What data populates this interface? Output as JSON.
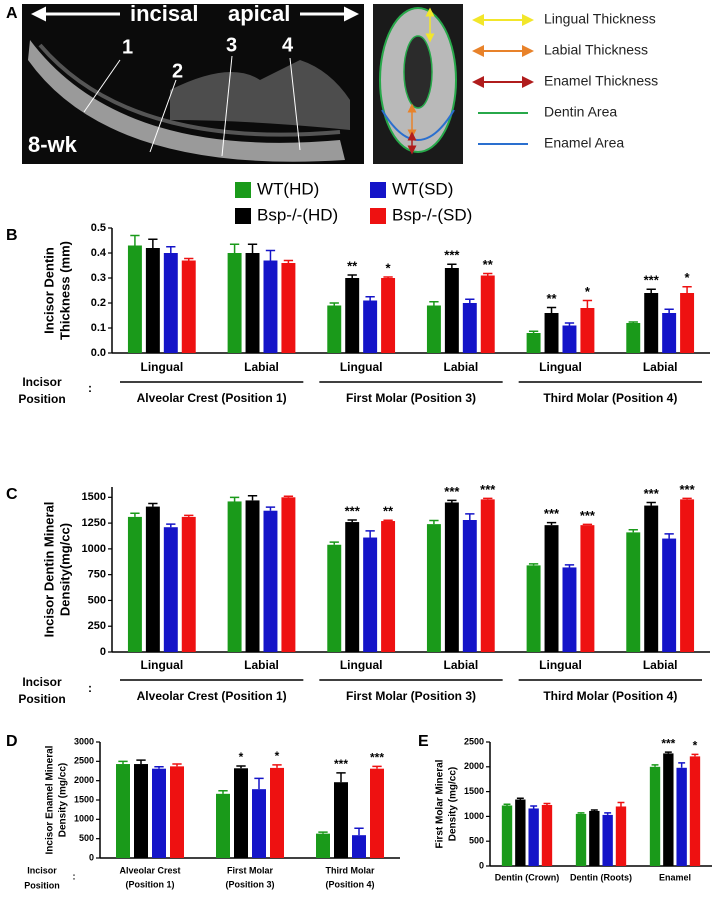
{
  "panel_a": {
    "panel": "A",
    "incisal": "incisal",
    "apical": "apical",
    "age": "8-wk",
    "positions": [
      "1",
      "2",
      "3",
      "4"
    ],
    "legend": [
      {
        "name": "Lingual Thickness",
        "color": "#f2e62a"
      },
      {
        "name": "Labial Thickness",
        "color": "#e8822a"
      },
      {
        "name": "Enamel Thickness",
        "color": "#b01c1c"
      },
      {
        "name": "Dentin Area",
        "color": "#27a84a"
      },
      {
        "name": "Enamel Area",
        "color": "#2a6fcf"
      }
    ]
  },
  "chart_data": [
    {
      "type": "bar",
      "panel": "B",
      "ylabel": [
        "Incisor Dentin",
        "Thickness (mm)"
      ],
      "categories": [
        "Lingual",
        "Labial",
        "Lingual",
        "Labial",
        "Lingual",
        "Labial"
      ],
      "groups": [
        "Alveolar Crest (Position 1)",
        "First Molar (Position 3)",
        "Third Molar (Position 4)"
      ],
      "group_title": [
        "Incisor",
        ":",
        "Position"
      ],
      "ylim": [
        0,
        0.5
      ],
      "yticks": [
        {
          "value": 0,
          "label": "0.0"
        },
        0.1,
        0.2,
        0.3,
        0.4,
        0.5
      ],
      "series": [
        {
          "name": "WT(HD)",
          "color": "#1a9a1a",
          "values": [
            0.43,
            0.4,
            0.19,
            0.19,
            0.08,
            0.12
          ],
          "errors": [
            0.04,
            0.035,
            0.01,
            0.015,
            0.007,
            0.004
          ],
          "significance": [
            null,
            null,
            null,
            null,
            null,
            null
          ]
        },
        {
          "name": "Bsp-/-(HD)",
          "color": "#000000",
          "values": [
            0.42,
            0.4,
            0.3,
            0.34,
            0.16,
            0.24
          ],
          "errors": [
            0.035,
            0.035,
            0.012,
            0.015,
            0.022,
            0.015
          ],
          "significance": [
            null,
            null,
            "**",
            "***",
            "**",
            "***"
          ]
        },
        {
          "name": "WT(SD)",
          "color": "#1414c8",
          "values": [
            0.4,
            0.37,
            0.21,
            0.2,
            0.11,
            0.16
          ],
          "errors": [
            0.025,
            0.04,
            0.015,
            0.015,
            0.01,
            0.015
          ],
          "significance": [
            null,
            null,
            null,
            null,
            null,
            null
          ]
        },
        {
          "name": "Bsp-/-(SD)",
          "color": "#ee1111",
          "values": [
            0.37,
            0.36,
            0.3,
            0.31,
            0.18,
            0.24
          ],
          "errors": [
            0.008,
            0.01,
            0.004,
            0.008,
            0.03,
            0.025
          ],
          "significance": [
            null,
            null,
            "*",
            "**",
            "*",
            "*"
          ]
        }
      ]
    },
    {
      "type": "bar",
      "panel": "C",
      "ylabel": [
        "Incisor Dentin Mineral",
        "Density(mg/cc)"
      ],
      "categories": [
        "Lingual",
        "Labial",
        "Lingual",
        "Labial",
        "Lingual",
        "Labial"
      ],
      "groups": [
        "Alveolar Crest (Position 1)",
        "First Molar (Position 3)",
        "Third Molar (Position 4)"
      ],
      "group_title": [
        "Incisor",
        ":",
        "Position"
      ],
      "ylim": [
        0,
        1600
      ],
      "yticks": [
        0,
        250,
        500,
        750,
        1000,
        1250,
        1500
      ],
      "series": [
        {
          "color": "#1a9a1a",
          "values": [
            1310,
            1460,
            1040,
            1240,
            840,
            1160
          ],
          "errors": [
            35,
            40,
            25,
            35,
            15,
            25
          ],
          "significance": [
            null,
            null,
            null,
            null,
            null,
            null
          ]
        },
        {
          "color": "#000000",
          "values": [
            1410,
            1470,
            1260,
            1450,
            1230,
            1420
          ],
          "errors": [
            30,
            45,
            20,
            20,
            25,
            30
          ],
          "significance": [
            null,
            null,
            "***",
            "***",
            "***",
            "***"
          ]
        },
        {
          "color": "#1414c8",
          "values": [
            1210,
            1370,
            1110,
            1280,
            820,
            1100
          ],
          "errors": [
            30,
            35,
            65,
            60,
            25,
            45
          ],
          "significance": [
            null,
            null,
            null,
            null,
            null,
            null
          ]
        },
        {
          "color": "#ee1111",
          "values": [
            1310,
            1500,
            1270,
            1480,
            1230,
            1480
          ],
          "errors": [
            15,
            10,
            8,
            10,
            8,
            10
          ],
          "significance": [
            null,
            null,
            "**",
            "***",
            "***",
            "***"
          ]
        }
      ]
    },
    {
      "type": "bar",
      "panel": "D",
      "ylabel": [
        "Incisor Enamel Mineral",
        "Density (mg/cc)"
      ],
      "categories": [
        "Alveolar Crest",
        "First Molar",
        "Third Molar"
      ],
      "subcategories": [
        "(Position 1)",
        "(Position 3)",
        "(Position 4)"
      ],
      "group_title": [
        "Incisor",
        ":",
        "Position"
      ],
      "ylim": [
        0,
        3000
      ],
      "yticks": [
        0,
        500,
        1000,
        1500,
        2000,
        2500,
        3000
      ],
      "series": [
        {
          "color": "#1a9a1a",
          "values": [
            2430,
            1660,
            630
          ],
          "errors": [
            70,
            80,
            40
          ],
          "significance": [
            null,
            null,
            null
          ]
        },
        {
          "color": "#000000",
          "values": [
            2430,
            2320,
            1960
          ],
          "errors": [
            100,
            60,
            240
          ],
          "significance": [
            null,
            "*",
            "***"
          ]
        },
        {
          "color": "#1414c8",
          "values": [
            2310,
            1780,
            590
          ],
          "errors": [
            50,
            280,
            180
          ],
          "significance": [
            null,
            null,
            null
          ]
        },
        {
          "color": "#ee1111",
          "values": [
            2370,
            2330,
            2310
          ],
          "errors": [
            60,
            80,
            60
          ],
          "significance": [
            null,
            "*",
            "***"
          ]
        }
      ]
    },
    {
      "type": "bar",
      "panel": "E",
      "ylabel": [
        "First Molar Mineral",
        "Density (mg/cc)"
      ],
      "categories": [
        "Dentin (Crown)",
        "Dentin (Roots)",
        "Enamel"
      ],
      "ylim": [
        0,
        2500
      ],
      "yticks": [
        0,
        500,
        1000,
        1500,
        2000,
        2500
      ],
      "series": [
        {
          "color": "#1a9a1a",
          "values": [
            1220,
            1050,
            2000
          ],
          "errors": [
            25,
            20,
            40
          ],
          "significance": [
            null,
            null,
            null
          ]
        },
        {
          "color": "#000000",
          "values": [
            1340,
            1110,
            2270
          ],
          "errors": [
            25,
            20,
            25
          ],
          "significance": [
            null,
            null,
            "***"
          ]
        },
        {
          "color": "#1414c8",
          "values": [
            1160,
            1030,
            1980
          ],
          "errors": [
            50,
            40,
            100
          ],
          "significance": [
            null,
            null,
            null
          ]
        },
        {
          "color": "#ee1111",
          "values": [
            1230,
            1200,
            2210
          ],
          "errors": [
            30,
            80,
            40
          ],
          "significance": [
            null,
            null,
            "*"
          ]
        }
      ]
    }
  ]
}
